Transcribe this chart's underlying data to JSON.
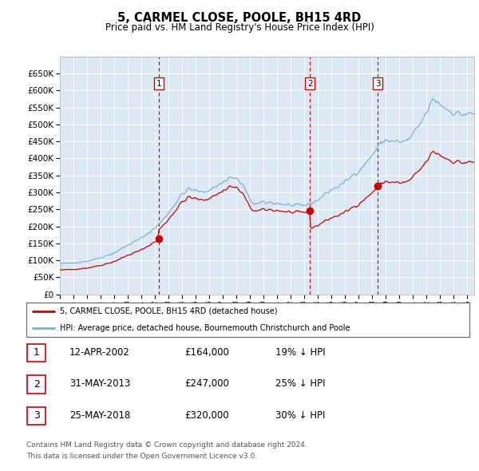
{
  "title": "5, CARMEL CLOSE, POOLE, BH15 4RD",
  "subtitle": "Price paid vs. HM Land Registry's House Price Index (HPI)",
  "footer_line1": "Contains HM Land Registry data © Crown copyright and database right 2024.",
  "footer_line2": "This data is licensed under the Open Government Licence v3.0.",
  "legend_line1": "5, CARMEL CLOSE, POOLE, BH15 4RD (detached house)",
  "legend_line2": "HPI: Average price, detached house, Bournemouth Christchurch and Poole",
  "transactions": [
    {
      "num": 1,
      "date": "12-APR-2002",
      "price": 164000,
      "pct": "19%",
      "dir": "↓",
      "x_year": 2002.28
    },
    {
      "num": 2,
      "date": "31-MAY-2013",
      "price": 247000,
      "pct": "25%",
      "dir": "↓",
      "x_year": 2013.41
    },
    {
      "num": 3,
      "date": "25-MAY-2018",
      "price": 320000,
      "pct": "30%",
      "dir": "↓",
      "x_year": 2018.41
    }
  ],
  "hpi_color": "#7ab0d4",
  "price_color": "#cc0000",
  "dashed_color": "#cc0000",
  "plot_bg": "#dce9f5",
  "grid_color": "#ffffff",
  "ylim": [
    0,
    700000
  ],
  "yticks": [
    0,
    50000,
    100000,
    150000,
    200000,
    250000,
    300000,
    350000,
    400000,
    450000,
    500000,
    550000,
    600000,
    650000
  ],
  "xlim_start": 1995.0,
  "xlim_end": 2025.5,
  "xticks": [
    1995,
    1996,
    1997,
    1998,
    1999,
    2000,
    2001,
    2002,
    2003,
    2004,
    2005,
    2006,
    2007,
    2008,
    2009,
    2010,
    2011,
    2012,
    2013,
    2014,
    2015,
    2016,
    2017,
    2018,
    2019,
    2020,
    2021,
    2022,
    2023,
    2024,
    2025
  ]
}
